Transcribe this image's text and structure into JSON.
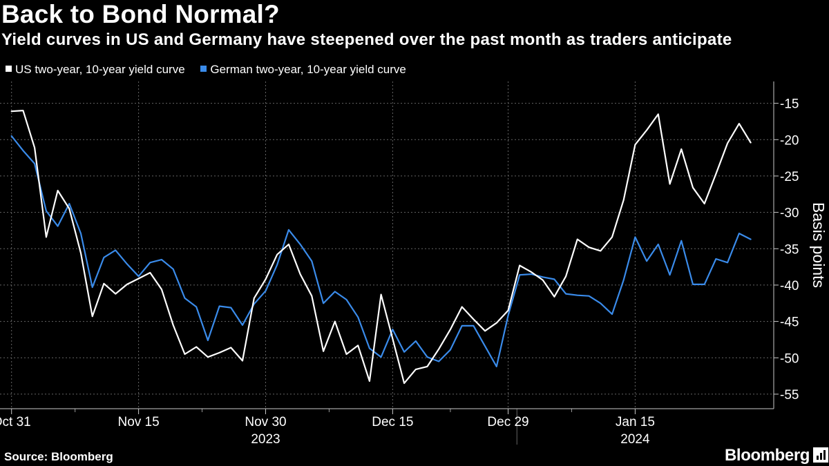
{
  "chart_data": {
    "type": "line",
    "title": "Back to Bond Normal?",
    "subtitle": "Yield curves in US and Germany have steepened over the past month as traders anticipate",
    "ylabel": "Basis points",
    "ylim": [
      -57,
      -12
    ],
    "yticks": [
      -15,
      -20,
      -25,
      -30,
      -35,
      -40,
      -45,
      -50,
      -55
    ],
    "xticks": [
      {
        "index": 0,
        "label": "Oct 31"
      },
      {
        "index": 11,
        "label": "Nov 15"
      },
      {
        "index": 22,
        "label": "Nov 30"
      },
      {
        "index": 33,
        "label": "Dec 15"
      },
      {
        "index": 43,
        "label": "Dec 29"
      },
      {
        "index": 54,
        "label": "Jan 15"
      }
    ],
    "year_labels": [
      {
        "index": 22,
        "label": "2023"
      },
      {
        "index": 54,
        "label": "2024"
      }
    ],
    "year_separator_index": 44,
    "x_range": [
      -1,
      66
    ],
    "grid": true,
    "series": [
      {
        "name": "US two-year, 10-year yield curve",
        "color": "#ffffff",
        "values": [
          -16.1,
          -16.0,
          -21.1,
          -33.4,
          -27.0,
          -29.5,
          -35.6,
          -44.3,
          -39.8,
          -41.2,
          -39.9,
          -39.1,
          -38.3,
          -40.6,
          -45.5,
          -49.5,
          -48.5,
          -49.9,
          -49.3,
          -48.6,
          -50.4,
          -41.8,
          -39.2,
          -35.8,
          -34.4,
          -38.5,
          -41.5,
          -49.1,
          -45.0,
          -49.5,
          -48.3,
          -53.2,
          -41.3,
          -47.4,
          -53.5,
          -51.6,
          -51.2,
          -48.8,
          -46.1,
          -43.0,
          -44.7,
          -46.3,
          -45.2,
          -43.5,
          -37.3,
          -38.2,
          -39.3,
          -41.6,
          -38.8,
          -33.7,
          -34.8,
          -35.3,
          -33.4,
          -28.3,
          -20.7,
          -18.7,
          -16.5,
          -26.1,
          -21.3,
          -26.6,
          -28.8,
          -24.7,
          -20.5,
          -17.8,
          -20.4
        ]
      },
      {
        "name": "German two-year, 10-year yield curve",
        "color": "#3a8bea",
        "values": [
          -19.5,
          -21.5,
          -23.3,
          -29.8,
          -31.9,
          -28.8,
          -32.9,
          -40.3,
          -36.2,
          -35.2,
          -37.1,
          -38.8,
          -36.9,
          -36.5,
          -37.8,
          -41.8,
          -43.0,
          -47.6,
          -42.9,
          -43.1,
          -45.5,
          -42.6,
          -40.8,
          -37.2,
          -32.4,
          -34.4,
          -36.7,
          -42.5,
          -40.9,
          -42.0,
          -44.4,
          -48.7,
          -49.9,
          -46.1,
          -49.2,
          -47.7,
          -49.9,
          -50.5,
          -48.9,
          -45.6,
          -45.6,
          -48.4,
          -51.2,
          -44.2,
          -38.6,
          -38.5,
          -38.9,
          -39.2,
          -41.2,
          -41.4,
          -41.5,
          -42.5,
          -44.0,
          -39.3,
          -33.4,
          -36.7,
          -34.4,
          -38.6,
          -33.9,
          -39.9,
          -39.9,
          -36.4,
          -36.9,
          -32.9,
          -33.7
        ]
      }
    ]
  },
  "source": "Source: Bloomberg",
  "brand": "Bloomberg",
  "brand_icon": "bloomberg-terminal-icon",
  "colors": {
    "background": "#000000",
    "text": "#ffffff",
    "grid": "#666666",
    "us": "#ffffff",
    "german": "#3a8bea"
  }
}
